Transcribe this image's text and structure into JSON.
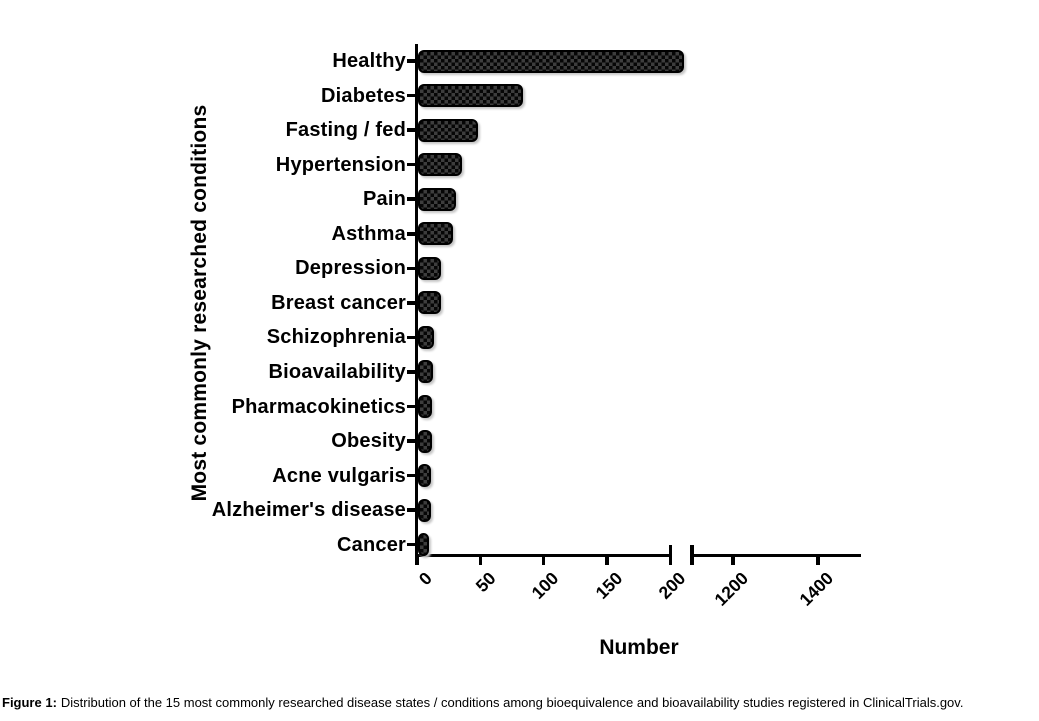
{
  "page": {
    "background": "#ffffff"
  },
  "figure": {
    "caption_label": "Figure 1:",
    "caption_text": "Distribution of the 15 most commonly researched disease states / conditions among bioequivalence and bioavailability studies registered in ClinicalTrials.gov."
  },
  "chart_data": {
    "type": "bar",
    "orientation": "horizontal",
    "title": "",
    "xlabel": "Number",
    "ylabel": "Most commonly researched conditions",
    "categories": [
      "Healthy",
      "Diabetes",
      "Fasting / fed",
      "Hypertension",
      "Pain",
      "Asthma",
      "Depression",
      "Breast cancer",
      "Schizophrenia",
      "Bioavailability",
      "Pharmacokinetics",
      "Obesity",
      "Acne vulgaris",
      "Alzheimer's disease",
      "Cancer"
    ],
    "values": [
      210,
      83,
      47,
      35,
      30,
      28,
      18,
      18,
      13,
      12,
      11,
      11,
      10,
      10,
      9
    ],
    "x_axis": {
      "segments": [
        {
          "ticks": [
            0,
            50,
            100,
            150,
            200
          ],
          "range": [
            0,
            202
          ]
        },
        {
          "ticks": [
            1200,
            1400
          ],
          "range": [
            1103,
            1503
          ]
        }
      ],
      "break_between": [
        200,
        1200
      ]
    },
    "bar_color": "#111111",
    "bar_pattern": "checkerboard",
    "axis_color": "#000000",
    "grid": "off",
    "legend": "none",
    "note": "Axis break after 200; Healthy bar is drawn up to the break"
  }
}
